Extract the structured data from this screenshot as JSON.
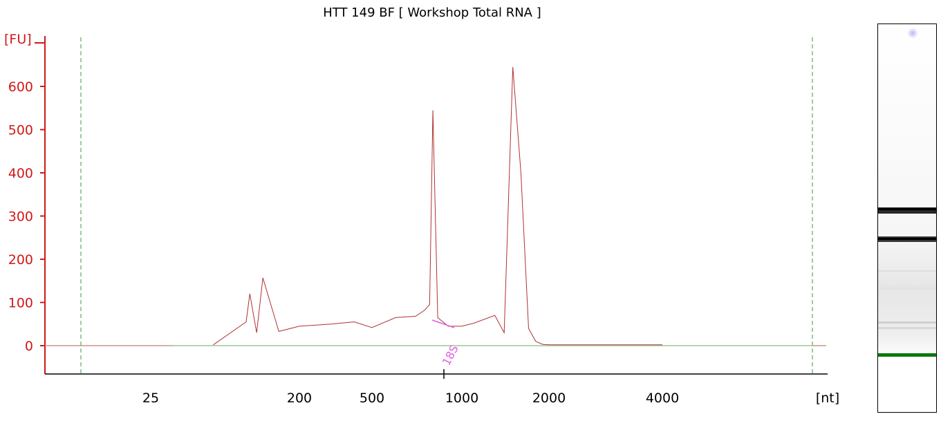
{
  "colors": {
    "axis": "#d01818",
    "trace": "#b03030",
    "baseline": "#7fbf7f",
    "marker_line": "#3a9a3a",
    "annotation": "#e060e0",
    "gel_band": "#111111",
    "gel_marker": "#0a7a0a",
    "gel_spot": "#c8c8f8"
  },
  "chart_data": {
    "type": "line",
    "title": "HTT 149 BF  [ Workshop Total RNA ]",
    "ylabel": "[FU]",
    "xlabel": "[nt]",
    "x_scale": "nonlinear (electropherogram)",
    "x_ticks": [
      "25",
      "200",
      "500",
      "1000",
      "2000",
      "4000"
    ],
    "y_ticks": [
      0,
      100,
      200,
      300,
      400,
      500,
      600
    ],
    "ylim": [
      -65,
      710
    ],
    "grid": false,
    "series": [
      {
        "x": [
          "60",
          "95",
          "100",
          "110",
          "120",
          "150",
          "200",
          "300",
          "400",
          "500",
          "600",
          "700",
          "750",
          "780",
          "800",
          "830",
          "900",
          "1000",
          "1100",
          "1300",
          "1400",
          "1500",
          "1600",
          "1700",
          "1800",
          "1900",
          "2000",
          "4000"
        ],
        "values": [
          2,
          55,
          120,
          30,
          157,
          33,
          45,
          50,
          55,
          42,
          65,
          68,
          82,
          95,
          545,
          65,
          45,
          45,
          52,
          70,
          30,
          645,
          400,
          40,
          10,
          3,
          2,
          2
        ]
      }
    ],
    "annotations": [
      {
        "label": "18S",
        "x": "1000"
      }
    ]
  },
  "gel_lane": {
    "bands": [
      "18S band",
      "28S band",
      "marker band"
    ]
  }
}
